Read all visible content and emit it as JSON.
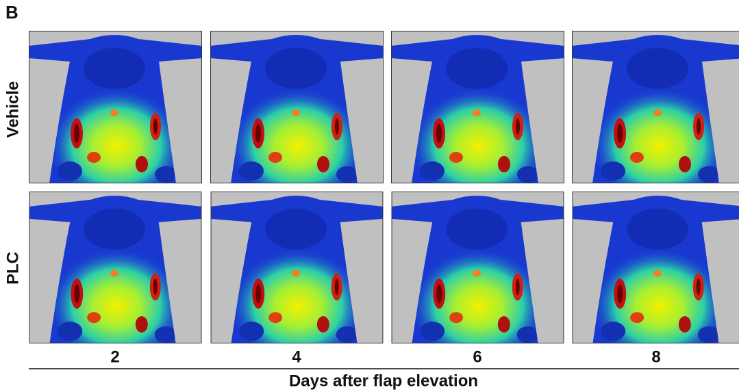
{
  "panel_label": "B",
  "rows": [
    "Vehicle",
    "PLC"
  ],
  "columns": [
    2,
    4,
    6,
    8
  ],
  "x_axis_title": "Days after flap elevation"
}
